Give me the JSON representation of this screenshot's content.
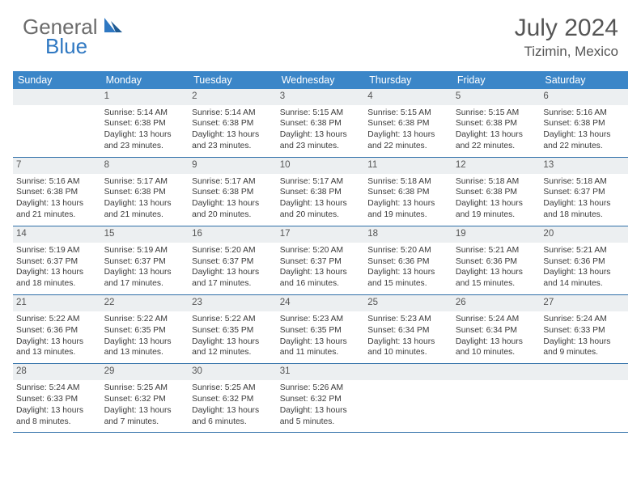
{
  "logo": {
    "general": "General",
    "blue": "Blue"
  },
  "title": "July 2024",
  "location": "Tizimin, Mexico",
  "colors": {
    "header_bar": "#3b86c8",
    "daynum_bg": "#eceff1",
    "row_border": "#2f6fa8",
    "logo_gray": "#6b6b6b",
    "logo_blue": "#2f78c2"
  },
  "weekdays": [
    "Sunday",
    "Monday",
    "Tuesday",
    "Wednesday",
    "Thursday",
    "Friday",
    "Saturday"
  ],
  "weeks": [
    [
      {
        "n": "",
        "sr": "",
        "ss": "",
        "d1": "",
        "d2": ""
      },
      {
        "n": "1",
        "sr": "Sunrise: 5:14 AM",
        "ss": "Sunset: 6:38 PM",
        "d1": "Daylight: 13 hours",
        "d2": "and 23 minutes."
      },
      {
        "n": "2",
        "sr": "Sunrise: 5:14 AM",
        "ss": "Sunset: 6:38 PM",
        "d1": "Daylight: 13 hours",
        "d2": "and 23 minutes."
      },
      {
        "n": "3",
        "sr": "Sunrise: 5:15 AM",
        "ss": "Sunset: 6:38 PM",
        "d1": "Daylight: 13 hours",
        "d2": "and 23 minutes."
      },
      {
        "n": "4",
        "sr": "Sunrise: 5:15 AM",
        "ss": "Sunset: 6:38 PM",
        "d1": "Daylight: 13 hours",
        "d2": "and 22 minutes."
      },
      {
        "n": "5",
        "sr": "Sunrise: 5:15 AM",
        "ss": "Sunset: 6:38 PM",
        "d1": "Daylight: 13 hours",
        "d2": "and 22 minutes."
      },
      {
        "n": "6",
        "sr": "Sunrise: 5:16 AM",
        "ss": "Sunset: 6:38 PM",
        "d1": "Daylight: 13 hours",
        "d2": "and 22 minutes."
      }
    ],
    [
      {
        "n": "7",
        "sr": "Sunrise: 5:16 AM",
        "ss": "Sunset: 6:38 PM",
        "d1": "Daylight: 13 hours",
        "d2": "and 21 minutes."
      },
      {
        "n": "8",
        "sr": "Sunrise: 5:17 AM",
        "ss": "Sunset: 6:38 PM",
        "d1": "Daylight: 13 hours",
        "d2": "and 21 minutes."
      },
      {
        "n": "9",
        "sr": "Sunrise: 5:17 AM",
        "ss": "Sunset: 6:38 PM",
        "d1": "Daylight: 13 hours",
        "d2": "and 20 minutes."
      },
      {
        "n": "10",
        "sr": "Sunrise: 5:17 AM",
        "ss": "Sunset: 6:38 PM",
        "d1": "Daylight: 13 hours",
        "d2": "and 20 minutes."
      },
      {
        "n": "11",
        "sr": "Sunrise: 5:18 AM",
        "ss": "Sunset: 6:38 PM",
        "d1": "Daylight: 13 hours",
        "d2": "and 19 minutes."
      },
      {
        "n": "12",
        "sr": "Sunrise: 5:18 AM",
        "ss": "Sunset: 6:38 PM",
        "d1": "Daylight: 13 hours",
        "d2": "and 19 minutes."
      },
      {
        "n": "13",
        "sr": "Sunrise: 5:18 AM",
        "ss": "Sunset: 6:37 PM",
        "d1": "Daylight: 13 hours",
        "d2": "and 18 minutes."
      }
    ],
    [
      {
        "n": "14",
        "sr": "Sunrise: 5:19 AM",
        "ss": "Sunset: 6:37 PM",
        "d1": "Daylight: 13 hours",
        "d2": "and 18 minutes."
      },
      {
        "n": "15",
        "sr": "Sunrise: 5:19 AM",
        "ss": "Sunset: 6:37 PM",
        "d1": "Daylight: 13 hours",
        "d2": "and 17 minutes."
      },
      {
        "n": "16",
        "sr": "Sunrise: 5:20 AM",
        "ss": "Sunset: 6:37 PM",
        "d1": "Daylight: 13 hours",
        "d2": "and 17 minutes."
      },
      {
        "n": "17",
        "sr": "Sunrise: 5:20 AM",
        "ss": "Sunset: 6:37 PM",
        "d1": "Daylight: 13 hours",
        "d2": "and 16 minutes."
      },
      {
        "n": "18",
        "sr": "Sunrise: 5:20 AM",
        "ss": "Sunset: 6:36 PM",
        "d1": "Daylight: 13 hours",
        "d2": "and 15 minutes."
      },
      {
        "n": "19",
        "sr": "Sunrise: 5:21 AM",
        "ss": "Sunset: 6:36 PM",
        "d1": "Daylight: 13 hours",
        "d2": "and 15 minutes."
      },
      {
        "n": "20",
        "sr": "Sunrise: 5:21 AM",
        "ss": "Sunset: 6:36 PM",
        "d1": "Daylight: 13 hours",
        "d2": "and 14 minutes."
      }
    ],
    [
      {
        "n": "21",
        "sr": "Sunrise: 5:22 AM",
        "ss": "Sunset: 6:36 PM",
        "d1": "Daylight: 13 hours",
        "d2": "and 13 minutes."
      },
      {
        "n": "22",
        "sr": "Sunrise: 5:22 AM",
        "ss": "Sunset: 6:35 PM",
        "d1": "Daylight: 13 hours",
        "d2": "and 13 minutes."
      },
      {
        "n": "23",
        "sr": "Sunrise: 5:22 AM",
        "ss": "Sunset: 6:35 PM",
        "d1": "Daylight: 13 hours",
        "d2": "and 12 minutes."
      },
      {
        "n": "24",
        "sr": "Sunrise: 5:23 AM",
        "ss": "Sunset: 6:35 PM",
        "d1": "Daylight: 13 hours",
        "d2": "and 11 minutes."
      },
      {
        "n": "25",
        "sr": "Sunrise: 5:23 AM",
        "ss": "Sunset: 6:34 PM",
        "d1": "Daylight: 13 hours",
        "d2": "and 10 minutes."
      },
      {
        "n": "26",
        "sr": "Sunrise: 5:24 AM",
        "ss": "Sunset: 6:34 PM",
        "d1": "Daylight: 13 hours",
        "d2": "and 10 minutes."
      },
      {
        "n": "27",
        "sr": "Sunrise: 5:24 AM",
        "ss": "Sunset: 6:33 PM",
        "d1": "Daylight: 13 hours",
        "d2": "and 9 minutes."
      }
    ],
    [
      {
        "n": "28",
        "sr": "Sunrise: 5:24 AM",
        "ss": "Sunset: 6:33 PM",
        "d1": "Daylight: 13 hours",
        "d2": "and 8 minutes."
      },
      {
        "n": "29",
        "sr": "Sunrise: 5:25 AM",
        "ss": "Sunset: 6:32 PM",
        "d1": "Daylight: 13 hours",
        "d2": "and 7 minutes."
      },
      {
        "n": "30",
        "sr": "Sunrise: 5:25 AM",
        "ss": "Sunset: 6:32 PM",
        "d1": "Daylight: 13 hours",
        "d2": "and 6 minutes."
      },
      {
        "n": "31",
        "sr": "Sunrise: 5:26 AM",
        "ss": "Sunset: 6:32 PM",
        "d1": "Daylight: 13 hours",
        "d2": "and 5 minutes."
      },
      {
        "n": "",
        "sr": "",
        "ss": "",
        "d1": "",
        "d2": ""
      },
      {
        "n": "",
        "sr": "",
        "ss": "",
        "d1": "",
        "d2": ""
      },
      {
        "n": "",
        "sr": "",
        "ss": "",
        "d1": "",
        "d2": ""
      }
    ]
  ]
}
